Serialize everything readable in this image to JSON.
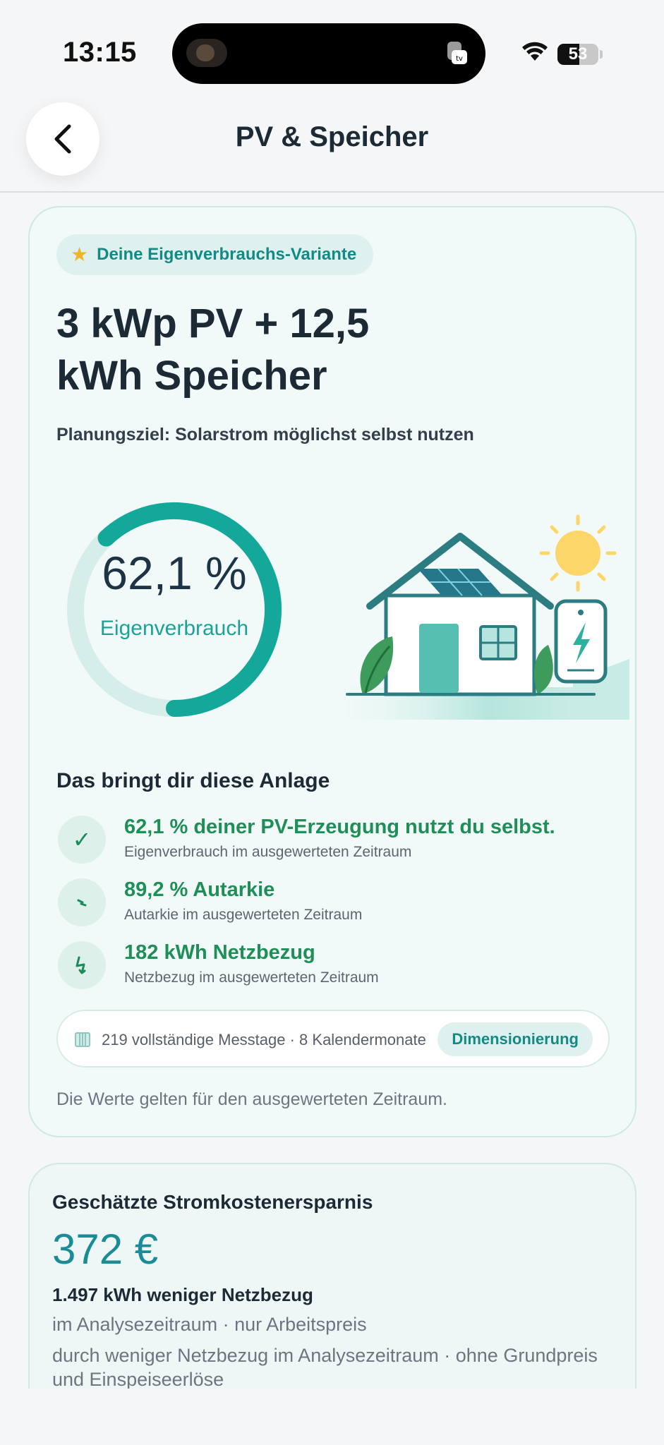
{
  "status_bar": {
    "time": "13:15",
    "battery": "53"
  },
  "header": {
    "title": "PV & Speicher"
  },
  "variant": {
    "badge": "Deine Eigenverbrauchs-Variante",
    "title": "3 kWp PV + 12,5 kWh Speicher",
    "planning_goal": "Planungsziel: Solarstrom möglichst selbst nutzen"
  },
  "gauge": {
    "value_text": "62,1 %",
    "label": "Eigenverbrauch",
    "fraction": 0.621
  },
  "benefits": {
    "title": "Das bringt dir diese Anlage",
    "items": [
      {
        "icon": "check-icon",
        "title": "62,1 % deiner PV-Erzeugung nutzt du selbst.",
        "subtitle": "Eigenverbrauch im ausgewerteten Zeitraum"
      },
      {
        "icon": "autarky-icon",
        "title": "89,2 % Autarkie",
        "subtitle": "Autarkie im ausgewerteten Zeitraum"
      },
      {
        "icon": "grid-bolt-icon",
        "title": "182 kWh Netzbezug",
        "subtitle": "Netzbezug im ausgewerteten Zeitraum"
      }
    ]
  },
  "info": {
    "text": "219 vollständige Messtage · 8 Kalendermonate",
    "button": "Dimensionierung"
  },
  "footnote": "Die Werte gelten für den ausgewerteten Zeitraum.",
  "savings": {
    "title": "Geschätzte Stromkostenersparnis",
    "value": "372 €",
    "kwh": "1.497 kWh weniger Netzbezug",
    "period": "im Analysezeitraum · nur Arbeitspreis",
    "note": "durch weniger Netzbezug im Analysezeitraum · ohne Grundpreis und Einspeiseerlöse"
  },
  "colors": {
    "accent": "#13a89a",
    "success": "#1f8f58",
    "sun": "#fcd668"
  }
}
